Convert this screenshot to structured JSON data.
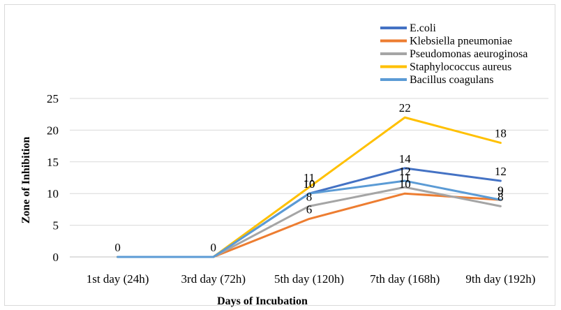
{
  "chart_data": {
    "type": "line",
    "title": "",
    "xlabel": "Days of Incubation",
    "ylabel": "Zone of Inhibition",
    "ylim": [
      0,
      25
    ],
    "yticks": [
      "0",
      "5",
      "10",
      "15",
      "20",
      "25"
    ],
    "categories": [
      "1st day (24h)",
      "3rd day (72h)",
      "5th day (120h)",
      "7th day (168h)",
      "9th day (192h)"
    ],
    "grid": "horizontal",
    "legend": "top-right",
    "series": [
      {
        "name": "E.coli",
        "color": "#4472c4",
        "values": [
          0,
          0,
          10,
          14,
          12
        ],
        "labels": [
          "0",
          "0",
          "10",
          "14",
          "12"
        ]
      },
      {
        "name": "Klebsiella pneumoniae",
        "color": "#ed7d31",
        "values": [
          0,
          0,
          6,
          10,
          9
        ],
        "labels": [
          "",
          "",
          "6",
          "10",
          "9"
        ]
      },
      {
        "name": "Pseudomonas aeuroginosa",
        "color": "#a5a5a5",
        "values": [
          0,
          0,
          8,
          11,
          8
        ],
        "labels": [
          "",
          "",
          "8",
          "11",
          "8"
        ]
      },
      {
        "name": "Staphylococcus aureus",
        "color": "#ffc000",
        "values": [
          0,
          0,
          11,
          22,
          18
        ],
        "labels": [
          "",
          "",
          "11",
          "22",
          "18"
        ]
      },
      {
        "name": "Bacillus coagulans",
        "color": "#5b9bd5",
        "values": [
          0,
          0,
          10,
          12,
          9
        ],
        "labels": [
          "",
          "",
          "10",
          "12",
          "9"
        ]
      }
    ]
  }
}
